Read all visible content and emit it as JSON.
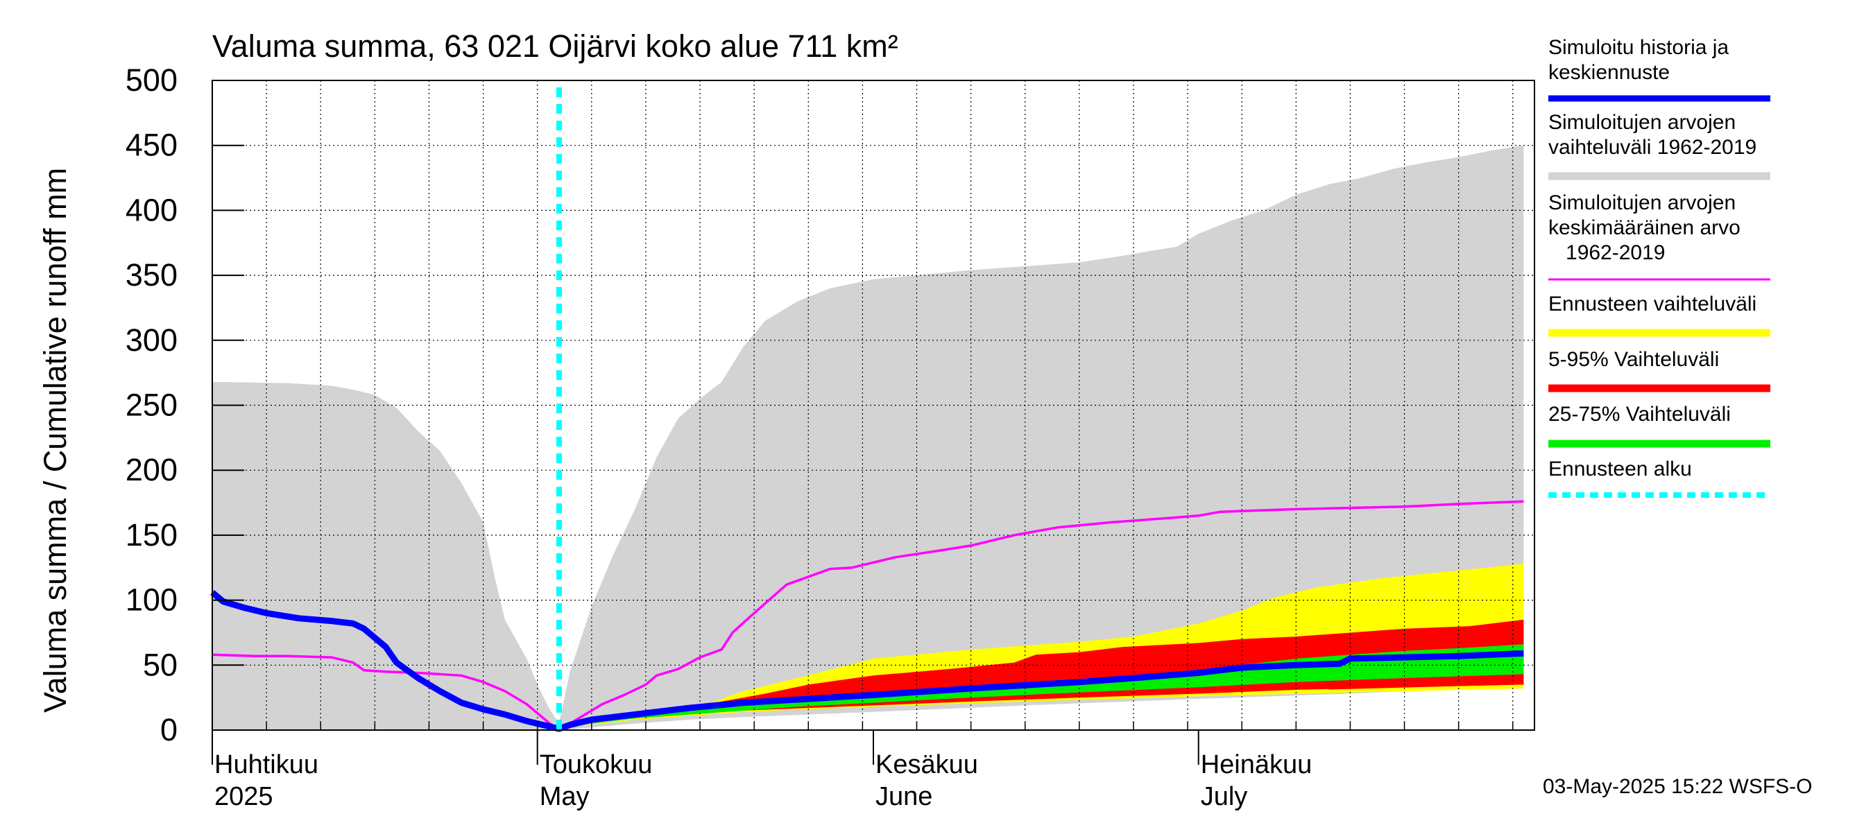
{
  "chart_data": {
    "type": "area",
    "title": "Valuma summa, 63 021 Oijärvi koko alue 711 km²",
    "ylabel": "Valuma summa / Cumulative runoff     mm",
    "ylim": [
      0,
      500
    ],
    "yticks": [
      0,
      50,
      100,
      150,
      200,
      250,
      300,
      350,
      400,
      450,
      500
    ],
    "xlim": [
      "2025-04-01",
      "2025-07-31"
    ],
    "x_month_labels": [
      {
        "date": "2025-04-01",
        "fi": "Huhtikuu",
        "en": "2025"
      },
      {
        "date": "2025-05-01",
        "fi": "Toukokuu",
        "en": "May"
      },
      {
        "date": "2025-06-01",
        "fi": "Kesäkuu",
        "en": "June"
      },
      {
        "date": "2025-07-01",
        "fi": "Heinäkuu",
        "en": "July"
      }
    ],
    "grid": true,
    "legend_position": "right",
    "forecast_start": "2025-05-03",
    "footer": "03-May-2025 15:22 WSFS-O",
    "legend": [
      {
        "label": "Simuloitu historia ja\nkeskiennuste",
        "color": "#0000ff",
        "style": "line"
      },
      {
        "label": "Simuloitujen arvojen\nvaihteluväli 1962-2019",
        "color": "#d3d3d3",
        "style": "band"
      },
      {
        "label": "Simuloitujen arvojen\nkeskimääräinen arvo\n   1962-2019",
        "color": "#ff00ff",
        "style": "thin"
      },
      {
        "label": "Ennusteen vaihteluväli",
        "color": "#ffff00",
        "style": "band"
      },
      {
        "label": "5-95% Vaihteluväli",
        "color": "#ff0000",
        "style": "band"
      },
      {
        "label": "25-75% Vaihteluväli",
        "color": "#00ee00",
        "style": "band"
      },
      {
        "label": "Ennusteen alku",
        "color": "#00ffff",
        "style": "dashed"
      }
    ],
    "series": {
      "hist_range": {
        "upper": [
          [
            "2025-04-01",
            268
          ],
          [
            "2025-04-08",
            267
          ],
          [
            "2025-04-12",
            265
          ],
          [
            "2025-04-14",
            262
          ],
          [
            "2025-04-16",
            258
          ],
          [
            "2025-04-18",
            248
          ],
          [
            "2025-04-20",
            230
          ],
          [
            "2025-04-22",
            215
          ],
          [
            "2025-04-24",
            190
          ],
          [
            "2025-04-26",
            160
          ],
          [
            "2025-04-27",
            120
          ],
          [
            "2025-04-28",
            85
          ],
          [
            "2025-04-30",
            55
          ],
          [
            "2025-05-01",
            35
          ],
          [
            "2025-05-02",
            18
          ],
          [
            "2025-05-03",
            5
          ],
          [
            "2025-05-04",
            45
          ],
          [
            "2025-05-06",
            95
          ],
          [
            "2025-05-08",
            135
          ],
          [
            "2025-05-10",
            170
          ],
          [
            "2025-05-12",
            210
          ],
          [
            "2025-05-14",
            240
          ],
          [
            "2025-05-16",
            255
          ],
          [
            "2025-05-18",
            268
          ],
          [
            "2025-05-20",
            295
          ],
          [
            "2025-05-22",
            315
          ],
          [
            "2025-05-25",
            330
          ],
          [
            "2025-05-28",
            340
          ],
          [
            "2025-06-01",
            347
          ],
          [
            "2025-06-05",
            350
          ],
          [
            "2025-06-10",
            354
          ],
          [
            "2025-06-15",
            357
          ],
          [
            "2025-06-20",
            360
          ],
          [
            "2025-06-24",
            365
          ],
          [
            "2025-06-26",
            368
          ],
          [
            "2025-06-29",
            372
          ],
          [
            "2025-07-01",
            382
          ],
          [
            "2025-07-04",
            392
          ],
          [
            "2025-07-07",
            400
          ],
          [
            "2025-07-10",
            412
          ],
          [
            "2025-07-13",
            420
          ],
          [
            "2025-07-16",
            425
          ],
          [
            "2025-07-19",
            432
          ],
          [
            "2025-07-22",
            437
          ],
          [
            "2025-07-25",
            441
          ],
          [
            "2025-07-28",
            446
          ],
          [
            "2025-07-31",
            450
          ]
        ],
        "lower": [
          [
            "2025-04-01",
            0
          ],
          [
            "2025-05-03",
            0
          ],
          [
            "2025-05-06",
            2
          ],
          [
            "2025-05-10",
            5
          ],
          [
            "2025-05-15",
            8
          ],
          [
            "2025-05-20",
            10
          ],
          [
            "2025-06-01",
            14
          ],
          [
            "2025-06-15",
            19
          ],
          [
            "2025-07-01",
            24
          ],
          [
            "2025-07-15",
            28
          ],
          [
            "2025-07-31",
            34
          ]
        ]
      },
      "forecast_range": {
        "upper": [
          [
            "2025-05-03",
            2
          ],
          [
            "2025-05-10",
            10
          ],
          [
            "2025-05-15",
            15
          ],
          [
            "2025-05-20",
            30
          ],
          [
            "2025-05-25",
            40
          ],
          [
            "2025-06-01",
            55
          ],
          [
            "2025-06-10",
            62
          ],
          [
            "2025-06-15",
            65
          ],
          [
            "2025-06-20",
            68
          ],
          [
            "2025-06-25",
            72
          ],
          [
            "2025-07-01",
            82
          ],
          [
            "2025-07-05",
            92
          ],
          [
            "2025-07-08",
            102
          ],
          [
            "2025-07-12",
            110
          ],
          [
            "2025-07-18",
            117
          ],
          [
            "2025-07-24",
            122
          ],
          [
            "2025-07-31",
            128
          ]
        ],
        "lower": [
          [
            "2025-05-03",
            2
          ],
          [
            "2025-05-10",
            8
          ],
          [
            "2025-05-15",
            11
          ],
          [
            "2025-05-20",
            14
          ],
          [
            "2025-06-01",
            18
          ],
          [
            "2025-06-15",
            22
          ],
          [
            "2025-07-01",
            26
          ],
          [
            "2025-07-15",
            29
          ],
          [
            "2025-07-31",
            32
          ]
        ]
      },
      "p5_95": {
        "upper": [
          [
            "2025-05-03",
            2
          ],
          [
            "2025-05-10",
            10
          ],
          [
            "2025-05-15",
            16
          ],
          [
            "2025-05-18",
            22
          ],
          [
            "2025-05-22",
            28
          ],
          [
            "2025-05-26",
            35
          ],
          [
            "2025-06-01",
            42
          ],
          [
            "2025-06-08",
            47
          ],
          [
            "2025-06-14",
            52
          ],
          [
            "2025-06-16",
            58
          ],
          [
            "2025-06-20",
            60
          ],
          [
            "2025-06-24",
            64
          ],
          [
            "2025-07-01",
            67
          ],
          [
            "2025-07-05",
            70
          ],
          [
            "2025-07-10",
            72
          ],
          [
            "2025-07-15",
            75
          ],
          [
            "2025-07-20",
            78
          ],
          [
            "2025-07-26",
            80
          ],
          [
            "2025-07-31",
            85
          ]
        ],
        "lower": [
          [
            "2025-05-03",
            2
          ],
          [
            "2025-05-10",
            9
          ],
          [
            "2025-05-15",
            12
          ],
          [
            "2025-05-20",
            15
          ],
          [
            "2025-06-01",
            19
          ],
          [
            "2025-06-10",
            22
          ],
          [
            "2025-06-20",
            25
          ],
          [
            "2025-07-01",
            28
          ],
          [
            "2025-07-10",
            31
          ],
          [
            "2025-07-20",
            33
          ],
          [
            "2025-07-31",
            35
          ]
        ]
      },
      "p25_75": {
        "upper": [
          [
            "2025-05-03",
            2
          ],
          [
            "2025-05-10",
            10
          ],
          [
            "2025-05-15",
            15
          ],
          [
            "2025-05-20",
            19
          ],
          [
            "2025-05-25",
            23
          ],
          [
            "2025-06-01",
            28
          ],
          [
            "2025-06-10",
            33
          ],
          [
            "2025-06-20",
            38
          ],
          [
            "2025-06-25",
            41
          ],
          [
            "2025-07-01",
            46
          ],
          [
            "2025-07-05",
            50
          ],
          [
            "2025-07-10",
            55
          ],
          [
            "2025-07-15",
            58
          ],
          [
            "2025-07-20",
            61
          ],
          [
            "2025-07-25",
            63
          ],
          [
            "2025-07-31",
            66
          ]
        ],
        "lower": [
          [
            "2025-05-03",
            2
          ],
          [
            "2025-05-10",
            9
          ],
          [
            "2025-05-15",
            12
          ],
          [
            "2025-05-20",
            15
          ],
          [
            "2025-05-25",
            18
          ],
          [
            "2025-06-01",
            21
          ],
          [
            "2025-06-10",
            25
          ],
          [
            "2025-06-20",
            29
          ],
          [
            "2025-07-01",
            33
          ],
          [
            "2025-07-10",
            37
          ],
          [
            "2025-07-20",
            40
          ],
          [
            "2025-07-31",
            43
          ]
        ]
      },
      "mean_hist": [
        [
          "2025-04-01",
          58
        ],
        [
          "2025-04-05",
          57
        ],
        [
          "2025-04-08",
          57
        ],
        [
          "2025-04-12",
          56
        ],
        [
          "2025-04-14",
          52
        ],
        [
          "2025-04-15",
          46
        ],
        [
          "2025-04-17",
          45
        ],
        [
          "2025-04-20",
          44
        ],
        [
          "2025-04-22",
          43
        ],
        [
          "2025-04-24",
          42
        ],
        [
          "2025-04-26",
          37
        ],
        [
          "2025-04-28",
          30
        ],
        [
          "2025-04-30",
          20
        ],
        [
          "2025-05-01",
          13
        ],
        [
          "2025-05-02",
          6
        ],
        [
          "2025-05-03",
          0
        ],
        [
          "2025-05-05",
          10
        ],
        [
          "2025-05-07",
          20
        ],
        [
          "2025-05-09",
          27
        ],
        [
          "2025-05-11",
          35
        ],
        [
          "2025-05-12",
          42
        ],
        [
          "2025-05-14",
          47
        ],
        [
          "2025-05-16",
          56
        ],
        [
          "2025-05-18",
          62
        ],
        [
          "2025-05-19",
          75
        ],
        [
          "2025-05-21",
          90
        ],
        [
          "2025-05-24",
          112
        ],
        [
          "2025-05-26",
          118
        ],
        [
          "2025-05-28",
          124
        ],
        [
          "2025-05-30",
          125
        ],
        [
          "2025-06-03",
          133
        ],
        [
          "2025-06-07",
          138
        ],
        [
          "2025-06-10",
          142
        ],
        [
          "2025-06-14",
          150
        ],
        [
          "2025-06-18",
          156
        ],
        [
          "2025-06-23",
          160
        ],
        [
          "2025-06-28",
          163
        ],
        [
          "2025-07-01",
          165
        ],
        [
          "2025-07-03",
          168
        ],
        [
          "2025-07-10",
          170
        ],
        [
          "2025-07-15",
          171
        ],
        [
          "2025-07-20",
          172
        ],
        [
          "2025-07-25",
          174
        ],
        [
          "2025-07-31",
          176
        ]
      ],
      "central": [
        [
          "2025-04-01",
          106
        ],
        [
          "2025-04-02",
          99
        ],
        [
          "2025-04-04",
          94
        ],
        [
          "2025-04-06",
          90
        ],
        [
          "2025-04-09",
          86
        ],
        [
          "2025-04-12",
          84
        ],
        [
          "2025-04-14",
          82
        ],
        [
          "2025-04-15",
          78
        ],
        [
          "2025-04-17",
          64
        ],
        [
          "2025-04-18",
          52
        ],
        [
          "2025-04-20",
          40
        ],
        [
          "2025-04-22",
          30
        ],
        [
          "2025-04-24",
          21
        ],
        [
          "2025-04-26",
          16
        ],
        [
          "2025-04-28",
          12
        ],
        [
          "2025-04-30",
          7
        ],
        [
          "2025-05-02",
          3
        ],
        [
          "2025-05-03",
          1
        ],
        [
          "2025-05-04",
          4
        ],
        [
          "2025-05-06",
          8
        ],
        [
          "2025-05-10",
          12
        ],
        [
          "2025-05-15",
          17
        ],
        [
          "2025-05-20",
          21
        ],
        [
          "2025-06-01",
          27
        ],
        [
          "2025-06-10",
          32
        ],
        [
          "2025-06-20",
          37
        ],
        [
          "2025-06-25",
          40
        ],
        [
          "2025-07-01",
          44
        ],
        [
          "2025-07-05",
          48
        ],
        [
          "2025-07-10",
          50
        ],
        [
          "2025-07-14",
          51
        ],
        [
          "2025-07-15",
          55
        ],
        [
          "2025-07-20",
          56
        ],
        [
          "2025-07-25",
          57
        ],
        [
          "2025-07-31",
          59
        ]
      ],
      "extra_red_line": [
        [
          "2025-07-13",
          32
        ],
        [
          "2025-07-31",
          36
        ]
      ]
    }
  }
}
